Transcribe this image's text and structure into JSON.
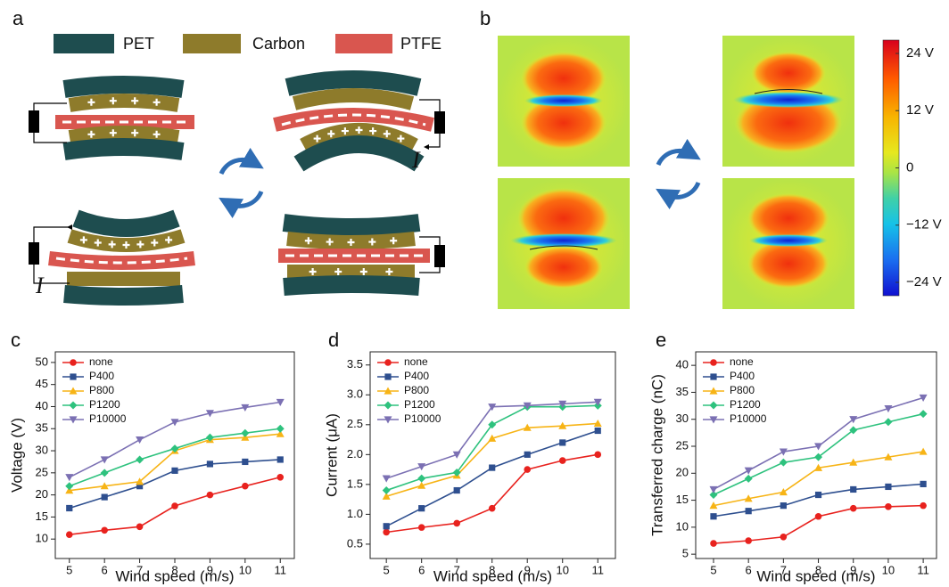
{
  "panel_a": {
    "label": "a",
    "legend": [
      "PET",
      "Carbon",
      "PTFE"
    ],
    "current_labels": [
      "I",
      "I"
    ]
  },
  "panel_b": {
    "label": "b",
    "colorbar": {
      "lim": [
        -26.8,
        26.8
      ],
      "ticks": [
        {
          "value": 24,
          "label": "24 V"
        },
        {
          "value": 12,
          "label": "12 V"
        },
        0,
        {
          "value": -12,
          "label": "−12 V"
        },
        {
          "value": -24,
          "label": "−24 V"
        }
      ]
    }
  },
  "chart_data": [
    {
      "type": "line",
      "panel_label": "c",
      "xlabel": "Wind speed (m/s)",
      "ylabel": "Voltage (V)",
      "x": [
        5,
        6,
        7,
        8,
        9,
        10,
        11
      ],
      "xlim": [
        4.6,
        11.4
      ],
      "xticks": [
        5,
        6,
        7,
        8,
        9,
        10,
        11
      ],
      "ylim": [
        5.6,
        52.4
      ],
      "yticks": [
        10,
        15,
        20,
        25,
        30,
        35,
        40,
        45,
        50
      ],
      "legend": "upper left",
      "series": [
        {
          "name": "none",
          "color": "#e8221e",
          "marker": "circle",
          "values": [
            11,
            12,
            12.8,
            17.5,
            20,
            22,
            24
          ]
        },
        {
          "name": "P400",
          "color": "#2e4f8f",
          "marker": "square",
          "values": [
            17,
            19.5,
            22,
            25.5,
            27,
            27.5,
            28
          ]
        },
        {
          "name": "P800",
          "color": "#f7b416",
          "marker": "triangle-up",
          "values": [
            21,
            22,
            23,
            30,
            32.5,
            33,
            33.8
          ]
        },
        {
          "name": "P1200",
          "color": "#2ec27e",
          "marker": "diamond",
          "values": [
            22,
            25,
            28,
            30.5,
            33,
            34,
            35
          ]
        },
        {
          "name": "P10000",
          "color": "#7b70b3",
          "marker": "triangle-down",
          "values": [
            24,
            28,
            32.5,
            36.5,
            38.5,
            39.8,
            41
          ]
        }
      ]
    },
    {
      "type": "line",
      "panel_label": "d",
      "xlabel": "Wind speed (m/s)",
      "ylabel": "Current (μA)",
      "x": [
        5,
        6,
        7,
        8,
        9,
        10,
        11
      ],
      "xlim": [
        4.54,
        11.5
      ],
      "xticks": [
        5,
        6,
        7,
        8,
        9,
        10,
        11
      ],
      "ylim": [
        0.26,
        3.72
      ],
      "yticks": [
        0.5,
        {
          "value": 1,
          "label": "1.0"
        },
        1.5,
        {
          "value": 2,
          "label": "2.0"
        },
        2.5,
        {
          "value": 3,
          "label": "3.0"
        },
        3.5
      ],
      "legend": "upper left",
      "series": [
        {
          "name": "none",
          "color": "#e8221e",
          "marker": "circle",
          "values": [
            0.7,
            0.78,
            0.85,
            1.1,
            1.75,
            1.9,
            2.0
          ]
        },
        {
          "name": "P400",
          "color": "#2e4f8f",
          "marker": "square",
          "values": [
            0.8,
            1.1,
            1.4,
            1.78,
            2.0,
            2.2,
            2.4
          ]
        },
        {
          "name": "P800",
          "color": "#f7b416",
          "marker": "triangle-up",
          "values": [
            1.3,
            1.48,
            1.65,
            2.27,
            2.45,
            2.48,
            2.52
          ]
        },
        {
          "name": "P1200",
          "color": "#2ec27e",
          "marker": "diamond",
          "values": [
            1.4,
            1.6,
            1.7,
            2.5,
            2.8,
            2.8,
            2.82
          ]
        },
        {
          "name": "P10000",
          "color": "#7b70b3",
          "marker": "triangle-down",
          "values": [
            1.6,
            1.8,
            2.0,
            2.8,
            2.82,
            2.85,
            2.88
          ]
        }
      ]
    },
    {
      "type": "line",
      "panel_label": "e",
      "xlabel": "Wind speed (m/s)",
      "ylabel": "Transferred charge (nC)",
      "x": [
        5,
        6,
        7,
        8,
        9,
        10,
        11
      ],
      "xlim": [
        4.49,
        11.38
      ],
      "xticks": [
        5,
        6,
        7,
        8,
        9,
        10,
        11
      ],
      "ylim": [
        4.2,
        42.5
      ],
      "yticks": [
        5,
        10,
        15,
        20,
        25,
        30,
        35,
        40
      ],
      "legend": "upper left",
      "series": [
        {
          "name": "none",
          "color": "#e8221e",
          "marker": "circle",
          "values": [
            7,
            7.5,
            8.2,
            12,
            13.5,
            13.8,
            14
          ]
        },
        {
          "name": "P400",
          "color": "#2e4f8f",
          "marker": "square",
          "values": [
            12,
            13,
            14,
            16,
            17,
            17.5,
            18
          ]
        },
        {
          "name": "P800",
          "color": "#f7b416",
          "marker": "triangle-up",
          "values": [
            14,
            15.3,
            16.5,
            21,
            22,
            23,
            24
          ]
        },
        {
          "name": "P1200",
          "color": "#2ec27e",
          "marker": "diamond",
          "values": [
            16,
            19,
            22,
            23,
            28,
            29.5,
            31
          ]
        },
        {
          "name": "P10000",
          "color": "#7b70b3",
          "marker": "triangle-down",
          "values": [
            17,
            20.5,
            24,
            25,
            30,
            32,
            34
          ]
        }
      ]
    }
  ]
}
